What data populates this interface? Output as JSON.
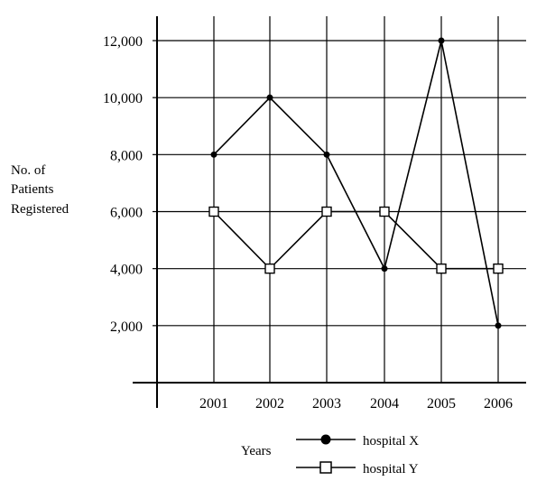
{
  "chart_data": {
    "type": "line",
    "title": "",
    "xlabel": "Years",
    "ylabel": [
      "No. of",
      "Patients",
      "Registered"
    ],
    "categories": [
      "2001",
      "2002",
      "2003",
      "2004",
      "2005",
      "2006"
    ],
    "y_ticks": [
      "2,000",
      "4,000",
      "6,000",
      "8,000",
      "10,000",
      "12,000"
    ],
    "y_tick_values": [
      2000,
      4000,
      6000,
      8000,
      10000,
      12000
    ],
    "ylim": [
      0,
      12000
    ],
    "grid": true,
    "legend_position": "bottom-center",
    "series": [
      {
        "name": "hospital X",
        "values": [
          8000,
          10000,
          8000,
          4000,
          12000,
          2000
        ],
        "marker": "filled-circle",
        "color": "#000000"
      },
      {
        "name": "hospital Y",
        "values": [
          6000,
          4000,
          6000,
          6000,
          4000,
          4000
        ],
        "marker": "open-square",
        "color": "#000000"
      }
    ]
  }
}
